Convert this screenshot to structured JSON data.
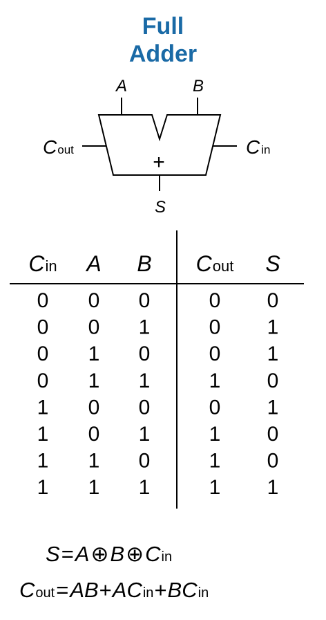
{
  "title": {
    "line1": "Full",
    "line2": "Adder"
  },
  "symbol": {
    "input_a": "A",
    "input_b": "B",
    "operator": "+",
    "carry_out": {
      "base": "C",
      "sub": "out"
    },
    "carry_in": {
      "base": "C",
      "sub": "in"
    },
    "sum": "S"
  },
  "truth_table": {
    "headers": [
      {
        "base": "C",
        "sub": "in"
      },
      {
        "base": "A",
        "sub": ""
      },
      {
        "base": "B",
        "sub": ""
      },
      {
        "base": "C",
        "sub": "out"
      },
      {
        "base": "S",
        "sub": ""
      }
    ],
    "rows": [
      [
        "0",
        "0",
        "0",
        "0",
        "0"
      ],
      [
        "0",
        "0",
        "1",
        "0",
        "1"
      ],
      [
        "0",
        "1",
        "0",
        "0",
        "1"
      ],
      [
        "0",
        "1",
        "1",
        "1",
        "0"
      ],
      [
        "1",
        "0",
        "0",
        "0",
        "1"
      ],
      [
        "1",
        "0",
        "1",
        "1",
        "0"
      ],
      [
        "1",
        "1",
        "0",
        "1",
        "0"
      ],
      [
        "1",
        "1",
        "1",
        "1",
        "1"
      ]
    ]
  },
  "equations": {
    "sum": {
      "lhs": "S",
      "eq": "=",
      "t1": "A",
      "op1": "⊕",
      "t2": "B",
      "op2": "⊕",
      "t3": "C",
      "t3sub": "in"
    },
    "carry": {
      "lhs": "C",
      "lhssub": "out",
      "eq": "=",
      "t1": "AB",
      "p1": "+",
      "t2": "AC",
      "t2sub": "in",
      "p2": "+",
      "t3": "BC",
      "t3sub": "in"
    }
  }
}
